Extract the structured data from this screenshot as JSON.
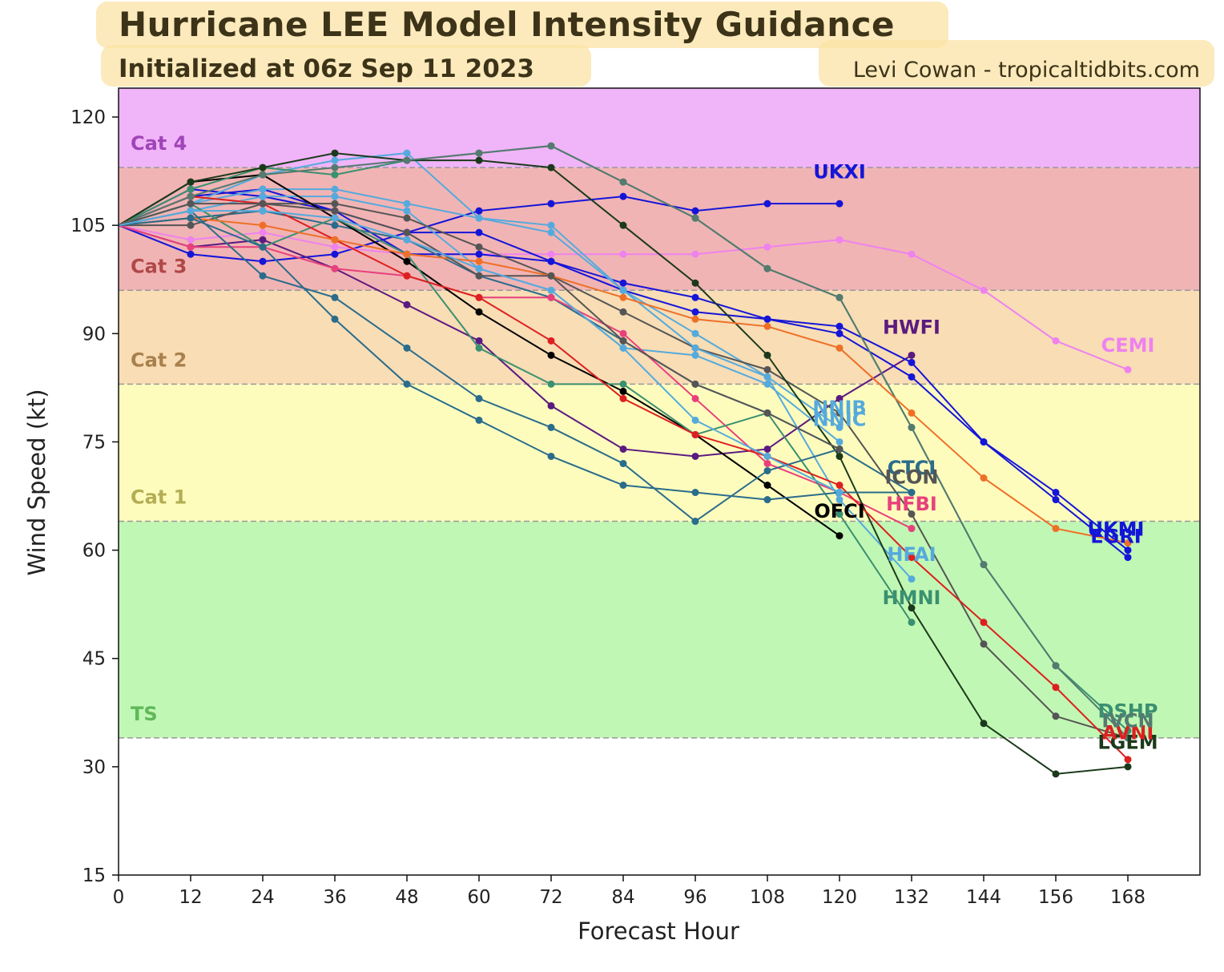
{
  "header": {
    "title": "Hurricane LEE Model Intensity Guidance",
    "subtitle": "Initialized at 06z Sep 11 2023",
    "credit": "Levi Cowan - tropicaltidbits.com"
  },
  "chart_data": {
    "type": "line",
    "title": "Hurricane LEE Model Intensity Guidance",
    "subtitle": "Initialized at 06z Sep 11 2023",
    "xlabel": "Forecast Hour",
    "ylabel": "Wind Speed (kt)",
    "xlim": [
      0,
      180
    ],
    "ylim": [
      15,
      124
    ],
    "xticks": [
      0,
      12,
      24,
      36,
      48,
      60,
      72,
      84,
      96,
      108,
      120,
      132,
      144,
      156,
      168
    ],
    "yticks": [
      15,
      30,
      45,
      60,
      75,
      90,
      105,
      120
    ],
    "bands": [
      {
        "name": "TS",
        "from": 34,
        "to": 64,
        "color": "#c1f7b4",
        "label_color": "#5fb85a"
      },
      {
        "name": "Cat 1",
        "from": 64,
        "to": 83,
        "color": "#fefcbd",
        "label_color": "#b3ad54"
      },
      {
        "name": "Cat 2",
        "from": 83,
        "to": 96,
        "color": "#f8ddb5",
        "label_color": "#a9804c"
      },
      {
        "name": "Cat 3",
        "from": 96,
        "to": 113,
        "color": "#f1b4b4",
        "label_color": "#b04848"
      },
      {
        "name": "Cat 4",
        "from": 113,
        "to": 124,
        "color": "#f0b4f8",
        "label_color": "#a044b8"
      }
    ],
    "series": [
      {
        "name": "UKXI",
        "color": "#1515d8",
        "x": [
          0,
          12,
          24,
          36,
          48,
          60,
          72,
          84,
          96,
          108,
          120
        ],
        "y": [
          105,
          101,
          100,
          101,
          104,
          107,
          108,
          109,
          107,
          108,
          108
        ],
        "label_x": 120,
        "label_y": 111.5
      },
      {
        "name": "CEMI",
        "color": "#ee82ee",
        "x": [
          0,
          12,
          24,
          36,
          48,
          60,
          72,
          84,
          96,
          108,
          120,
          132,
          144,
          156,
          168
        ],
        "y": [
          105,
          103,
          104,
          102,
          101,
          101,
          101,
          101,
          101,
          102,
          103,
          101,
          96,
          89,
          85
        ],
        "label_x": 168,
        "label_y": 87.5
      },
      {
        "name": "HWFI",
        "color": "#5b1a80",
        "x": [
          0,
          12,
          24,
          36,
          48,
          60,
          72,
          84,
          96,
          108,
          120,
          132
        ],
        "y": [
          105,
          102,
          103,
          99,
          94,
          89,
          80,
          74,
          73,
          74,
          81,
          87
        ],
        "label_x": 132,
        "label_y": 90
      },
      {
        "name": "UKMI",
        "color": "#1515d8",
        "x": [
          0,
          12,
          24,
          36,
          48,
          60,
          72,
          84,
          96,
          108,
          120,
          132,
          144,
          156,
          168
        ],
        "y": [
          105,
          109,
          110,
          107,
          104,
          104,
          100,
          97,
          95,
          92,
          91,
          86,
          75,
          68,
          60
        ],
        "label_x": 166,
        "label_y": 62
      },
      {
        "name": "EGRI",
        "color": "#1515d8",
        "x": [
          0,
          12,
          24,
          36,
          48,
          60,
          72,
          84,
          96,
          108,
          120,
          132,
          144,
          156,
          168
        ],
        "y": [
          105,
          110,
          109,
          107,
          101,
          101,
          100,
          96,
          93,
          92,
          90,
          84,
          75,
          67,
          59
        ],
        "label_x": 166,
        "label_y": 61
      },
      {
        "name": "NNIB",
        "color": "#55aadd",
        "x": [
          0,
          12,
          24,
          36,
          48,
          60,
          72,
          84,
          96,
          108,
          120
        ],
        "y": [
          105,
          108,
          110,
          110,
          108,
          106,
          105,
          96,
          90,
          84,
          77
        ],
        "label_x": 120,
        "label_y": 78.8
      },
      {
        "name": "NNIC",
        "color": "#55aadd",
        "x": [
          0,
          12,
          24,
          36,
          48,
          60,
          72,
          84,
          96,
          108,
          120
        ],
        "y": [
          105,
          107,
          109,
          109,
          107,
          99,
          96,
          88,
          87,
          83,
          75
        ],
        "label_x": 120,
        "label_y": 77.2
      },
      {
        "name": "CTCI",
        "color": "#2a6c8c",
        "x": [
          0,
          12,
          24,
          36,
          48,
          60,
          72,
          84,
          96,
          108,
          120,
          132
        ],
        "y": [
          105,
          106,
          107,
          105,
          103,
          98,
          95,
          89,
          83,
          79,
          74,
          68
        ],
        "label_x": 132,
        "label_y": 70.5
      },
      {
        "name": "ICON",
        "color": "#555555",
        "x": [
          0,
          12,
          24,
          36,
          48,
          60,
          72,
          84,
          96,
          108,
          120,
          132,
          144,
          156,
          168
        ],
        "y": [
          105,
          105,
          108,
          108,
          106,
          102,
          98,
          93,
          88,
          85,
          79,
          65,
          47,
          37,
          34
        ],
        "label_x": 132,
        "label_y": 69.2
      },
      {
        "name": "HFBI",
        "color": "#e8407c",
        "x": [
          0,
          12,
          24,
          36,
          48,
          60,
          72,
          84,
          96,
          108,
          120,
          132
        ],
        "y": [
          105,
          102,
          102,
          99,
          98,
          95,
          95,
          90,
          81,
          72,
          68,
          63
        ],
        "label_x": 132,
        "label_y": 65.5
      },
      {
        "name": "OFCI",
        "color": "#000000",
        "x": [
          0,
          12,
          24,
          36,
          48,
          60,
          72,
          84,
          96,
          108,
          120
        ],
        "y": [
          105,
          111,
          112,
          106,
          100,
          93,
          87,
          82,
          76,
          69,
          62
        ],
        "label_x": 120,
        "label_y": 64.5
      },
      {
        "name": "HFAI",
        "color": "#55aadd",
        "x": [
          0,
          12,
          24,
          36,
          48,
          60,
          72,
          84,
          96,
          108,
          120,
          132
        ],
        "y": [
          105,
          108,
          112,
          114,
          115,
          106,
          104,
          96,
          88,
          84,
          67,
          56
        ],
        "label_x": 132,
        "label_y": 58.5
      },
      {
        "name": "HMNI",
        "color": "#3a9070",
        "x": [
          0,
          12,
          24,
          36,
          48,
          60,
          72,
          84,
          96,
          108,
          120,
          132
        ],
        "y": [
          105,
          108,
          102,
          106,
          101,
          88,
          83,
          83,
          76,
          79,
          65,
          50
        ],
        "label_x": 132,
        "label_y": 52.5
      },
      {
        "name": "DSHP",
        "color": "#3a9070",
        "x": [
          0,
          12,
          24,
          36,
          48,
          60,
          72,
          84,
          96,
          108,
          120,
          132,
          144,
          156,
          168
        ],
        "y": [
          105,
          110,
          113,
          112,
          114,
          115,
          116,
          111,
          106,
          99,
          95,
          77,
          58,
          44,
          35
        ],
        "label_x": 168,
        "label_y": 36.8
      },
      {
        "name": "LGEM",
        "color": "#1b3a1b",
        "x": [
          0,
          12,
          24,
          36,
          48,
          60,
          72,
          84,
          96,
          108,
          120,
          132,
          144,
          156,
          168
        ],
        "y": [
          105,
          111,
          113,
          115,
          114,
          114,
          113,
          105,
          97,
          87,
          73,
          52,
          36,
          29,
          30
        ],
        "label_x": 168,
        "label_y": 32.5
      },
      {
        "name": "AVNI",
        "color": "#dd2020",
        "x": [
          0,
          12,
          24,
          36,
          48,
          60,
          72,
          84,
          96,
          108,
          120,
          132,
          144,
          156,
          168
        ],
        "y": [
          105,
          109,
          108,
          103,
          98,
          95,
          89,
          81,
          76,
          73,
          69,
          59,
          50,
          41,
          31
        ],
        "label_x": 168,
        "label_y": 33.8
      },
      {
        "name": "IVCN",
        "color": "#557a70",
        "x": [
          0,
          12,
          24,
          36,
          48,
          60,
          72,
          84,
          96,
          108,
          120,
          132,
          144,
          156,
          168
        ],
        "y": [
          105,
          109,
          112,
          113,
          114,
          115,
          116,
          111,
          106,
          99,
          95,
          77,
          58,
          44,
          34
        ],
        "label_x": 168,
        "label_y": 35.5
      },
      {
        "name": "",
        "color": "#ee7028",
        "x": [
          0,
          12,
          24,
          36,
          48,
          60,
          72,
          84,
          96,
          108,
          120,
          132,
          144,
          156,
          168
        ],
        "y": [
          105,
          106,
          105,
          103,
          101,
          100,
          98,
          95,
          92,
          91,
          88,
          79,
          70,
          63,
          61
        ],
        "label_x": null,
        "label_y": null
      },
      {
        "name": "",
        "color": "#2a6c8c",
        "x": [
          0,
          12,
          24,
          36,
          48,
          60,
          72,
          84,
          96,
          108,
          120
        ],
        "y": [
          105,
          107,
          98,
          95,
          88,
          81,
          77,
          72,
          64,
          71,
          74
        ],
        "label_x": null,
        "label_y": null
      },
      {
        "name": "",
        "color": "#2a6c8c",
        "x": [
          0,
          12,
          24,
          36,
          48,
          60,
          72,
          84,
          96,
          108,
          120,
          132
        ],
        "y": [
          105,
          106,
          102,
          92,
          83,
          78,
          73,
          69,
          68,
          67,
          68,
          68
        ],
        "label_x": null,
        "label_y": null
      },
      {
        "name": "",
        "color": "#555555",
        "x": [
          0,
          12,
          24,
          36,
          48,
          60,
          72,
          84,
          96,
          108,
          120
        ],
        "y": [
          105,
          108,
          108,
          107,
          104,
          98,
          98,
          89,
          83,
          79,
          74
        ],
        "label_x": null,
        "label_y": null
      },
      {
        "name": "",
        "color": "#55aadd",
        "x": [
          0,
          12,
          24,
          36,
          48,
          60,
          72,
          84,
          96,
          108,
          120
        ],
        "y": [
          105,
          107,
          107,
          106,
          103,
          99,
          96,
          88,
          78,
          73,
          68
        ],
        "label_x": null,
        "label_y": null
      }
    ]
  }
}
